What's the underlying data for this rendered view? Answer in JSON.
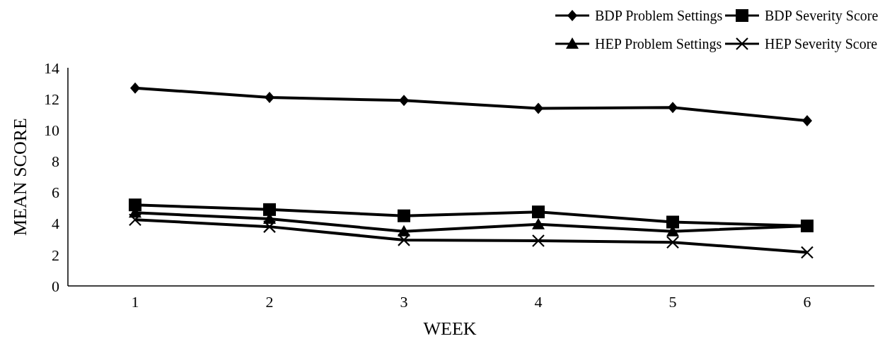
{
  "chart_data": {
    "type": "line",
    "xlabel": "WEEK",
    "ylabel": "MEAN SCORE",
    "categories": [
      "1",
      "2",
      "3",
      "4",
      "5",
      "6"
    ],
    "ylim": [
      0,
      14
    ],
    "yticks": [
      0,
      2,
      4,
      6,
      8,
      10,
      12,
      14
    ],
    "grid": false,
    "legend": "top right",
    "series": [
      {
        "name": "BDP Problem Settings",
        "color": "#000000",
        "marker": "diamond",
        "values": [
          12.7,
          12.1,
          11.9,
          11.4,
          11.45,
          10.6
        ]
      },
      {
        "name": "BDP Severity Score",
        "color": "#000000",
        "marker": "square",
        "values": [
          5.2,
          4.9,
          4.5,
          4.75,
          4.1,
          3.85
        ]
      },
      {
        "name": "HEP Problem Settings",
        "color": "#000000",
        "marker": "triangle",
        "values": [
          4.7,
          4.3,
          3.5,
          3.95,
          3.5,
          3.85
        ]
      },
      {
        "name": "HEP Severity Score",
        "color": "#000000",
        "marker": "cross",
        "values": [
          4.25,
          3.8,
          2.95,
          2.9,
          2.8,
          2.15
        ]
      }
    ]
  }
}
